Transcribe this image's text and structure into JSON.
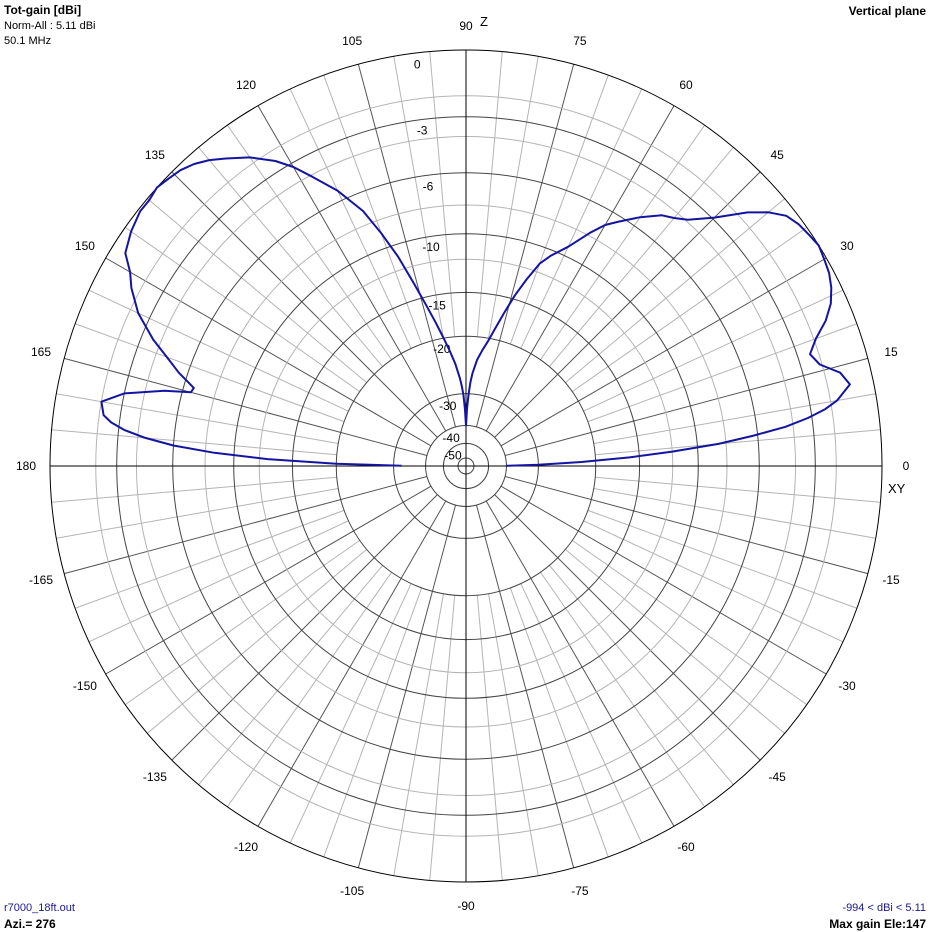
{
  "header": {
    "title": "Tot-gain [dBi]",
    "norm": "Norm-All : 5.11 dBi",
    "frequency": "50.1 MHz",
    "plane": "Vertical plane"
  },
  "footer": {
    "file": "r7000_18ft.out",
    "azimuth": "Azi.= 276",
    "range": "-994 < dBi < 5.11",
    "max_gain": "Max gain Ele:147"
  },
  "colors": {
    "pattern": "#1414a0",
    "major_grid": "#000000",
    "minor_grid": "#b4b4b4",
    "label_text": "#000000",
    "footer_text": "#1a1a8c"
  },
  "chart_data": {
    "type": "polar",
    "axis_labels": {
      "vertical": "Z",
      "horizontal": "XY"
    },
    "angle_tick_labels": [
      {
        "angle": 0,
        "label": "0"
      },
      {
        "angle": 15,
        "label": "15"
      },
      {
        "angle": 30,
        "label": "30"
      },
      {
        "angle": 45,
        "label": "45"
      },
      {
        "angle": 60,
        "label": "60"
      },
      {
        "angle": 75,
        "label": "75"
      },
      {
        "angle": 90,
        "label": "90"
      },
      {
        "angle": 105,
        "label": "105"
      },
      {
        "angle": 120,
        "label": "120"
      },
      {
        "angle": 135,
        "label": "135"
      },
      {
        "angle": 150,
        "label": "150"
      },
      {
        "angle": 165,
        "label": "165"
      },
      {
        "angle": 180,
        "label": "180"
      },
      {
        "angle": -165,
        "label": "-165"
      },
      {
        "angle": -150,
        "label": "-150"
      },
      {
        "angle": -135,
        "label": "-135"
      },
      {
        "angle": -120,
        "label": "-120"
      },
      {
        "angle": -105,
        "label": "-105"
      },
      {
        "angle": -90,
        "label": "-90"
      },
      {
        "angle": -75,
        "label": "-75"
      },
      {
        "angle": -60,
        "label": "-60"
      },
      {
        "angle": -45,
        "label": "-45"
      },
      {
        "angle": -30,
        "label": "-30"
      },
      {
        "angle": -15,
        "label": "-15"
      }
    ],
    "radial_ticks": [
      {
        "db": 0,
        "label": "0"
      },
      {
        "db": -3,
        "label": "-3"
      },
      {
        "db": -6,
        "label": "-6"
      },
      {
        "db": -10,
        "label": "-10"
      },
      {
        "db": -15,
        "label": "-15"
      },
      {
        "db": -20,
        "label": "-20"
      },
      {
        "db": -30,
        "label": "-30"
      },
      {
        "db": -40,
        "label": "-40"
      },
      {
        "db": -50,
        "label": "-50"
      }
    ],
    "major_spoke_step_deg": 15,
    "minor_spoke_step_deg": 5,
    "scale": "ARRL log (dB)",
    "series": [
      {
        "angle_deg": [
          0.3,
          1,
          2,
          3,
          4,
          5,
          6,
          7,
          8,
          9,
          10,
          12,
          14,
          15,
          16,
          18,
          20,
          22,
          24,
          26,
          28,
          30,
          32,
          34,
          36,
          38,
          40,
          42,
          45,
          48,
          50,
          52,
          55,
          58,
          60,
          62,
          65,
          68,
          70,
          72,
          74,
          76,
          78,
          80,
          82,
          84,
          86,
          87,
          88,
          89,
          90,
          91,
          92,
          93,
          94,
          96,
          98,
          100,
          102,
          104,
          106,
          108,
          110,
          112,
          115,
          118,
          120,
          122,
          125,
          128,
          130,
          132,
          134,
          136,
          138,
          140,
          142,
          145,
          148,
          150,
          152,
          155,
          158,
          160,
          162,
          164,
          165,
          166,
          168,
          170,
          172,
          173,
          174,
          175,
          176,
          177,
          178,
          179,
          179.7
        ],
        "gain_db": [
          -40,
          -30,
          -22,
          -16,
          -12,
          -8.5,
          -6.3,
          -4.4,
          -3.2,
          -2.3,
          -1.7,
          -1.0,
          -1.3,
          -1.7,
          -2.1,
          -2.4,
          -1.9,
          -1.2,
          -0.7,
          -0.4,
          -0.2,
          -0.1,
          0.0,
          -0.1,
          -0.2,
          -0.4,
          -0.9,
          -1.6,
          -2.9,
          -3.9,
          -4.3,
          -4.6,
          -5.4,
          -6.3,
          -6.9,
          -7.8,
          -9.3,
          -10.4,
          -11.3,
          -12.9,
          -14.6,
          -16.6,
          -18.6,
          -20.4,
          -21.8,
          -23.3,
          -25.7,
          -27.5,
          -30.3,
          -34.1,
          -40,
          -34.4,
          -30.4,
          -28.3,
          -26.6,
          -24.0,
          -21.9,
          -19.9,
          -17.8,
          -15.7,
          -13.4,
          -10.9,
          -8.9,
          -7.1,
          -5.4,
          -4.1,
          -3.2,
          -2.5,
          -1.7,
          -1.1,
          -0.7,
          -0.4,
          -0.2,
          -0.1,
          0.0,
          -0.1,
          -0.1,
          -0.3,
          -0.6,
          -1.2,
          -1.6,
          -2.4,
          -3.6,
          -4.6,
          -5.5,
          -6.6,
          -6.5,
          -5.0,
          -3.0,
          -2.0,
          -2.2,
          -2.6,
          -3.3,
          -4.4,
          -6.0,
          -8.6,
          -12.7,
          -20,
          -32
        ]
      }
    ]
  }
}
